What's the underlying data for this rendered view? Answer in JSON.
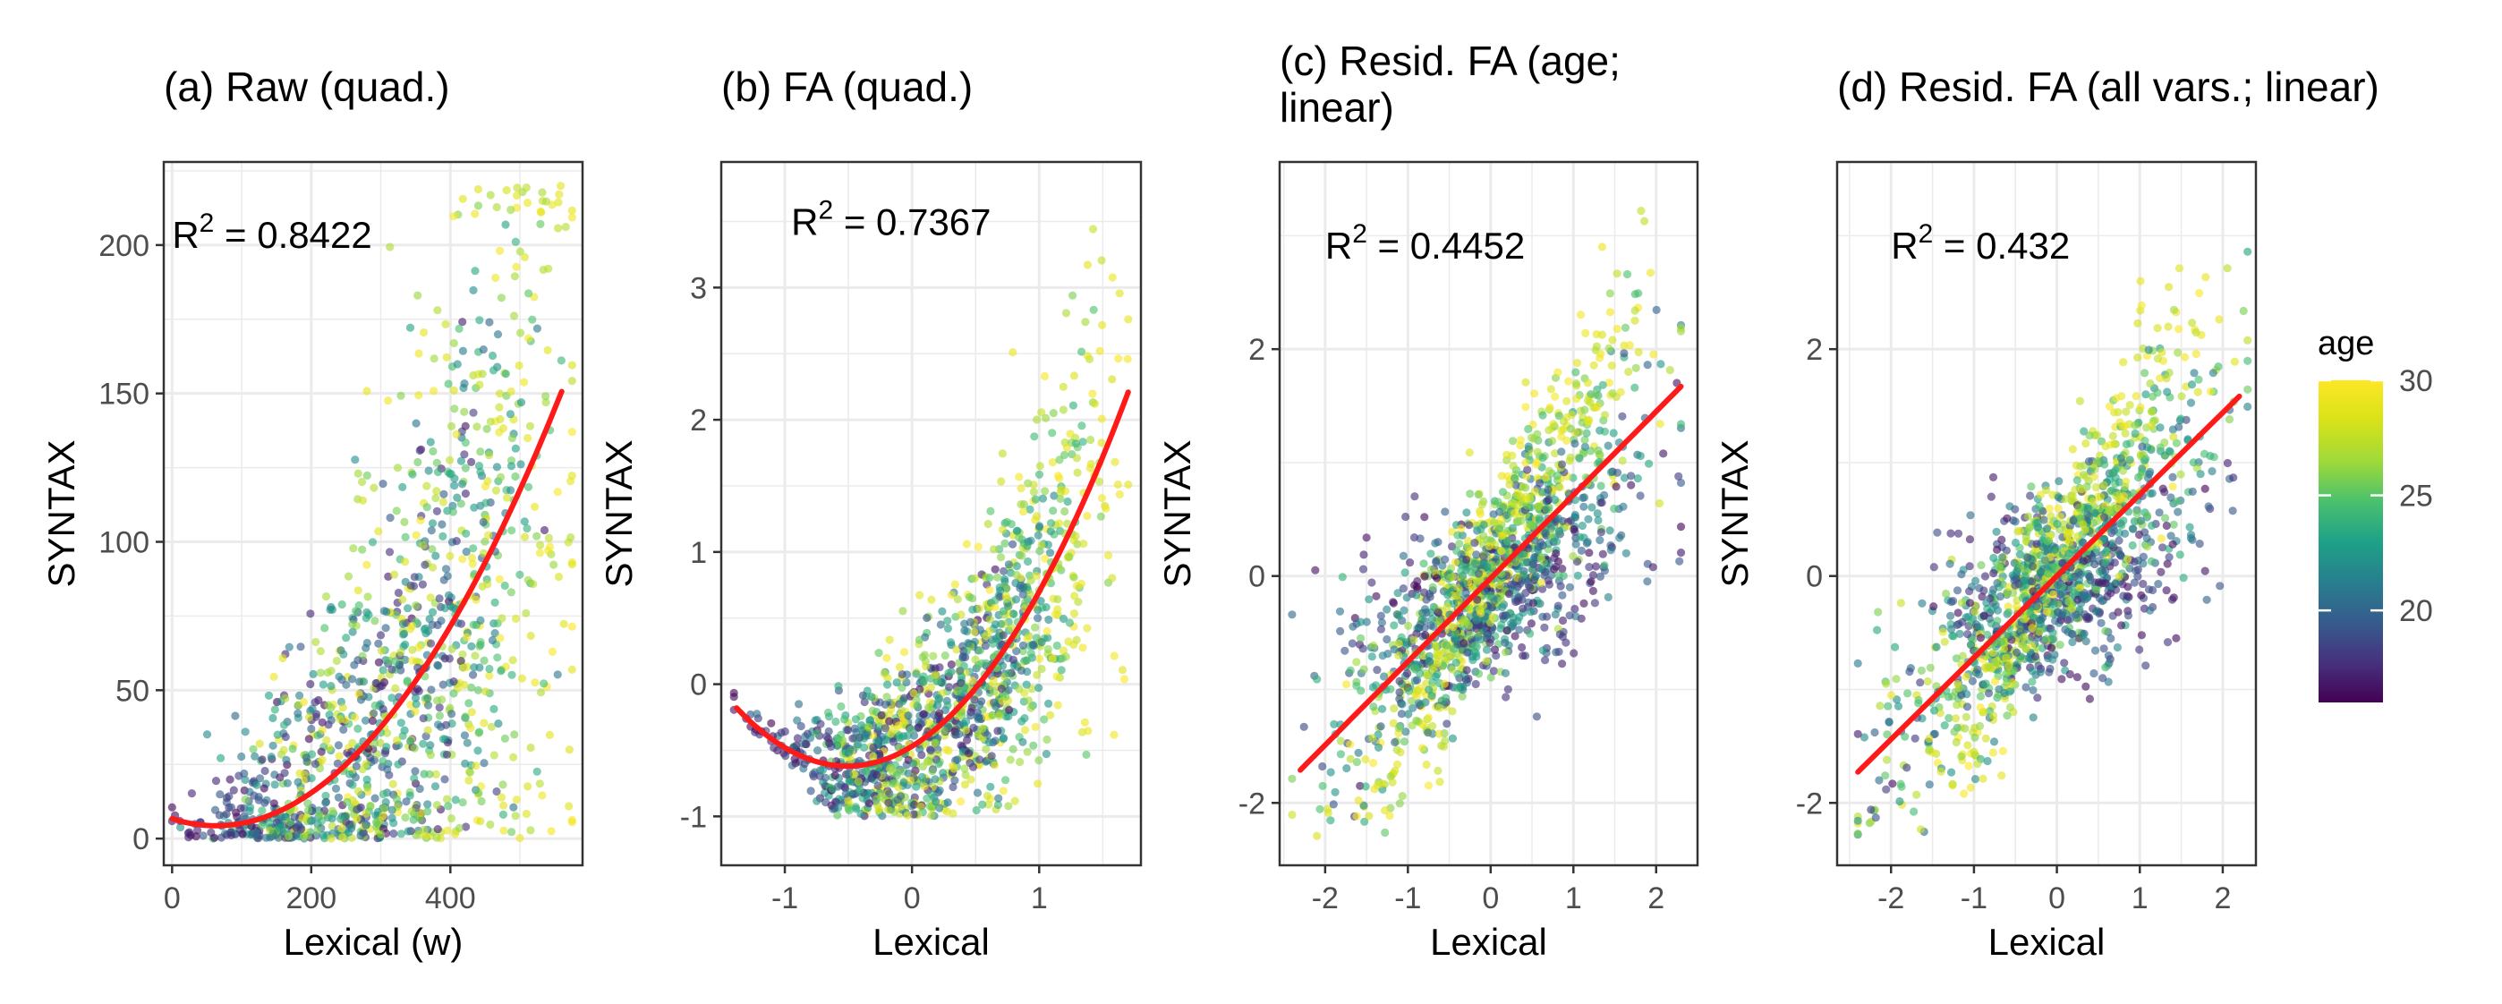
{
  "chart_data": [
    {
      "type": "scatter",
      "title": "(a) Raw (quad.)",
      "xlabel": "Lexical (w)",
      "ylabel": "SYNTAX",
      "xlim": [
        -12,
        590
      ],
      "ylim": [
        -9,
        228
      ],
      "xticks": [
        0,
        200,
        400
      ],
      "yticks": [
        0,
        50,
        100,
        150,
        200
      ],
      "annotation": {
        "text": "R",
        "sup": "2",
        "rest": " = 0.8422",
        "x": 0,
        "y": 199
      },
      "fit": {
        "kind": "quadratic",
        "a": 6.7,
        "b": -0.075,
        "c": 0.000593,
        "xmin": 0,
        "xmax": 560
      },
      "points": {
        "n": 1200,
        "seed": 11,
        "model": "raw"
      },
      "grid": true
    },
    {
      "type": "scatter",
      "title": "(b) FA (quad.)",
      "xlabel": "Lexical",
      "ylabel": "SYNTAX",
      "xlim": [
        -1.5,
        1.8
      ],
      "ylim": [
        -1.37,
        3.95
      ],
      "xticks": [
        -1,
        0,
        1
      ],
      "yticks": [
        -1,
        0,
        1,
        2,
        3
      ],
      "annotation": {
        "text": "R",
        "sup": "2",
        "rest": " = 0.7367",
        "x": -0.95,
        "y": 3.4
      },
      "fit": {
        "kind": "quadratic",
        "a": -0.47,
        "b": 0.59,
        "c": 0.58,
        "xmin": -1.38,
        "xmax": 1.7
      },
      "points": {
        "n": 1300,
        "seed": 23,
        "model": "fa"
      },
      "grid": true
    },
    {
      "type": "scatter",
      "title": "(c) Resid. FA (age; linear)",
      "title_lines": [
        "(c) Resid. FA (age;",
        "linear)"
      ],
      "xlabel": "Lexical",
      "ylabel": "SYNTAX",
      "xlim": [
        -2.55,
        2.5
      ],
      "ylim": [
        -2.55,
        3.65
      ],
      "xticks": [
        -2,
        -1,
        0,
        1,
        2
      ],
      "yticks": [
        -2,
        0,
        2
      ],
      "annotation": {
        "text": "R",
        "sup": "2",
        "rest": " = 0.4452",
        "x": -2.0,
        "y": 2.8
      },
      "fit": {
        "kind": "linear",
        "a": -0.02,
        "b": 0.735,
        "xmin": -2.3,
        "xmax": 2.3
      },
      "points": {
        "n": 1500,
        "seed": 37,
        "model": "resid"
      },
      "grid": true
    },
    {
      "type": "scatter",
      "title": "(d) Resid. FA (all vars.; linear)",
      "xlabel": "Lexical",
      "ylabel": "SYNTAX",
      "xlim": [
        -2.65,
        2.4
      ],
      "ylim": [
        -2.55,
        3.65
      ],
      "xticks": [
        -2,
        -1,
        0,
        1,
        2
      ],
      "yticks": [
        -2,
        0,
        2
      ],
      "annotation": {
        "text": "R",
        "sup": "2",
        "rest": " = 0.432",
        "x": -2.0,
        "y": 2.8
      },
      "fit": {
        "kind": "linear",
        "a": 0.0,
        "b": 0.72,
        "xmin": -2.4,
        "xmax": 2.2
      },
      "points": {
        "n": 1500,
        "seed": 53,
        "model": "resid"
      },
      "grid": true
    }
  ],
  "legend": {
    "title": "age",
    "type": "colorbar",
    "range": [
      16,
      30
    ],
    "ticks": [
      20,
      25,
      30
    ],
    "colormap": "viridis"
  },
  "colors": {
    "fit_line": "#ff1a1a",
    "grid": "#ebebeb",
    "axis_text": "#4d4d4d",
    "panel_border": "#333333"
  }
}
